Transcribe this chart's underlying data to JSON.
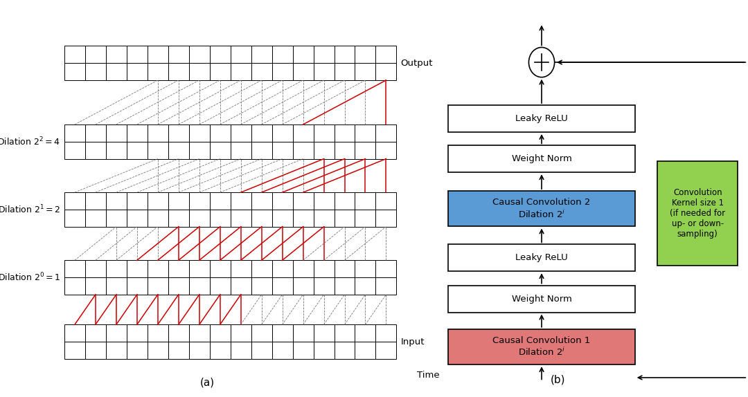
{
  "fig_width": 10.8,
  "fig_height": 5.74,
  "dpi": 100,
  "left_panel_label": "(a)",
  "right_panel_label": "(b)",
  "dilation_labels": [
    "Dilation $2^0=1$",
    "Dilation $2^1=2$",
    "Dilation $2^2=4$"
  ],
  "input_label": "Input",
  "output_label": "Output",
  "time_label": "Time",
  "num_cells": 16,
  "red_color": "#cc0000",
  "dashed_color": "#777777",
  "conv1_color": "#e07878",
  "conv2_color": "#5b9bd5",
  "skip_color": "#92d050",
  "white": "#ffffff",
  "black": "#000000"
}
